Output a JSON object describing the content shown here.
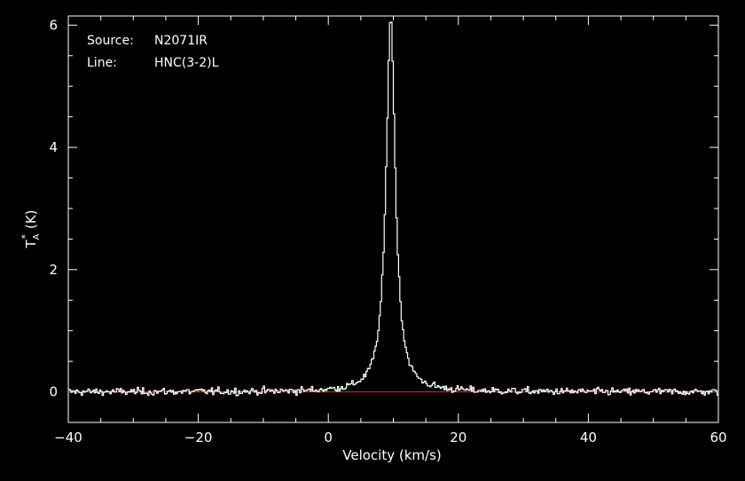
{
  "chart_data": {
    "type": "line",
    "header": [
      {
        "key": "Source:",
        "value": "N2071IR"
      },
      {
        "key": "Line:",
        "value": "HNC(3-2)L"
      }
    ],
    "xlabel": "Velocity (km/s)",
    "ylabel": "T_A^* (K)",
    "ylabel_main": "T",
    "ylabel_sub": "A",
    "ylabel_sup": "*",
    "ylabel_unit": "(K)",
    "xlim": [
      -40,
      60
    ],
    "ylim": [
      -0.5,
      6.15
    ],
    "x_ticks": [
      -40,
      -20,
      0,
      20,
      40,
      60
    ],
    "x_tick_labels": [
      "−40",
      "−20",
      "0",
      "20",
      "40",
      "60"
    ],
    "y_ticks": [
      0,
      2,
      4,
      6
    ],
    "y_tick_labels": [
      "0",
      "2",
      "4",
      "6"
    ],
    "baseline": 0,
    "spectrum": {
      "color": "#ffffff",
      "profile": {
        "center": 9.6,
        "peak": 6.12,
        "hwhm": 0.85
      },
      "noise_rms": 0.04,
      "channel_width": 0.2
    },
    "baseline_color": "#ff2020",
    "frame_color": "#ffffff"
  }
}
